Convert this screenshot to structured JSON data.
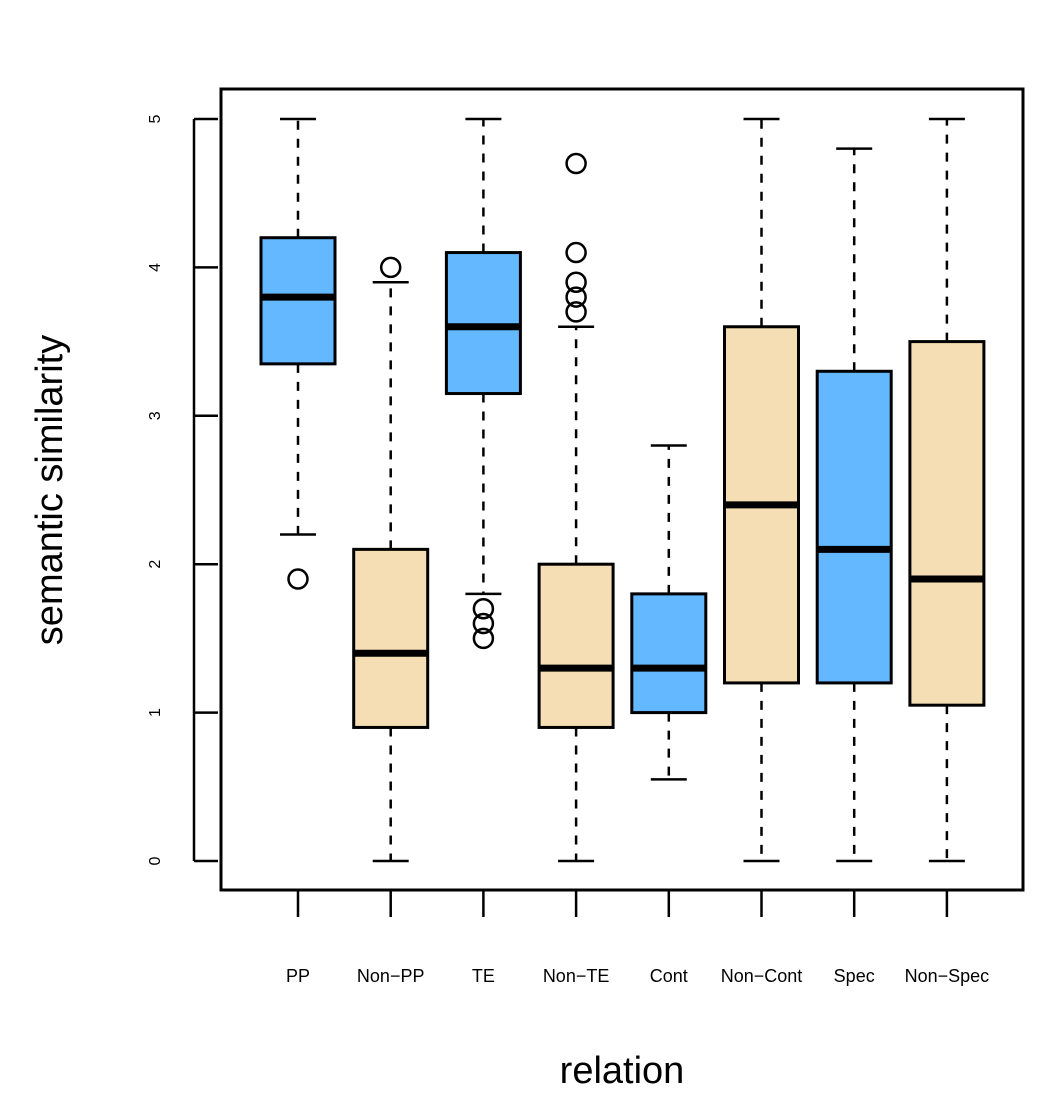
{
  "chart_data": {
    "type": "boxplot",
    "title": "",
    "xlabel": "relation",
    "ylabel": "semantic similarity",
    "ylim": [
      -0.2,
      5.2
    ],
    "yticks": [
      0,
      1,
      2,
      3,
      4,
      5
    ],
    "colors": {
      "related": "#63b8ff",
      "non_related": "#f5deb3",
      "stroke": "#000000"
    },
    "categories": [
      "PP",
      "Non−PP",
      "TE",
      "Non−TE",
      "Cont",
      "Non−Cont",
      "Spec",
      "Non−Spec"
    ],
    "boxes": [
      {
        "name": "PP",
        "min": 2.2,
        "q1": 3.35,
        "median": 3.8,
        "q3": 4.2,
        "max": 5.0,
        "outliers": [
          1.9
        ],
        "group": "related"
      },
      {
        "name": "Non-PP",
        "min": 0.0,
        "q1": 0.9,
        "median": 1.4,
        "q3": 2.1,
        "max": 3.9,
        "outliers": [
          4.0
        ],
        "group": "non_related"
      },
      {
        "name": "TE",
        "min": 1.8,
        "q1": 3.15,
        "median": 3.6,
        "q3": 4.1,
        "max": 5.0,
        "outliers": [
          1.7,
          1.6,
          1.5
        ],
        "group": "related"
      },
      {
        "name": "Non-TE",
        "min": 0.0,
        "q1": 0.9,
        "median": 1.3,
        "q3": 2.0,
        "max": 3.6,
        "outliers": [
          4.7,
          4.1,
          3.9,
          3.8,
          3.7
        ],
        "group": "non_related"
      },
      {
        "name": "Cont",
        "min": 0.55,
        "q1": 1.0,
        "median": 1.3,
        "q3": 1.8,
        "max": 2.8,
        "outliers": [],
        "group": "related"
      },
      {
        "name": "Non-Cont",
        "min": 0.0,
        "q1": 1.2,
        "median": 2.4,
        "q3": 3.6,
        "max": 5.0,
        "outliers": [],
        "group": "non_related"
      },
      {
        "name": "Spec",
        "min": 0.0,
        "q1": 1.2,
        "median": 2.1,
        "q3": 3.3,
        "max": 4.8,
        "outliers": [],
        "group": "related"
      },
      {
        "name": "Non-Spec",
        "min": 0.0,
        "q1": 1.05,
        "median": 1.9,
        "q3": 3.5,
        "max": 5.0,
        "outliers": [],
        "group": "non_related"
      }
    ]
  }
}
